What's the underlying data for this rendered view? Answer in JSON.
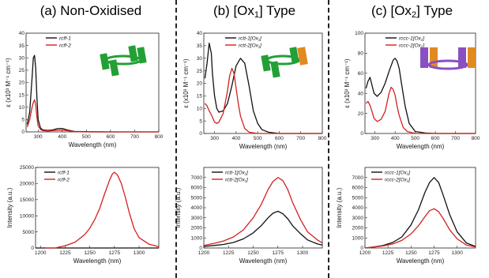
{
  "panels": [
    {
      "title_main": "(a) Non-Oxidised",
      "title_sub": ""
    },
    {
      "title_main": "(b) [Ox",
      "title_sub": "1",
      "title_tail": "] Type"
    },
    {
      "title_main": "(c) [Ox",
      "title_sub": "2",
      "title_tail": "] Type"
    }
  ],
  "colors": {
    "black": "#111111",
    "red": "#d42020",
    "green": "#22a035",
    "orange": "#e08a20",
    "purple": "#8a4fc0"
  },
  "icons": [
    "green-molecule-icon",
    "green-orange-molecule-icon",
    "purple-orange-molecule-icon"
  ],
  "chart_data": [
    {
      "type": "line",
      "ylabel": "ε (x10³ M⁻¹ cm⁻¹)",
      "xlabel": "Wavelength (nm)",
      "xlim": [
        250,
        800
      ],
      "ylim": [
        0,
        40
      ],
      "xticks": [
        300,
        400,
        500,
        600,
        700,
        800
      ],
      "yticks": [
        0,
        5,
        10,
        15,
        20,
        25,
        30,
        35,
        40
      ],
      "series": [
        {
          "name": "rcff-1",
          "color": "black",
          "x": [
            255,
            265,
            275,
            280,
            285,
            290,
            295,
            300,
            310,
            320,
            340,
            360,
            380,
            400,
            420,
            450,
            500,
            600,
            700,
            800
          ],
          "y": [
            3,
            8,
            22,
            30,
            31,
            26,
            14,
            5,
            1.5,
            0.8,
            0.6,
            0.8,
            1.3,
            1.4,
            0.8,
            0.2,
            0.05,
            0,
            0,
            0
          ]
        },
        {
          "name": "rcff-2",
          "color": "red",
          "x": [
            255,
            265,
            275,
            280,
            285,
            290,
            295,
            300,
            310,
            320,
            340,
            360,
            380,
            400,
            420,
            450,
            500,
            600,
            700,
            800
          ],
          "y": [
            2,
            5,
            10,
            12,
            13,
            11,
            6,
            2.5,
            1,
            0.5,
            0.4,
            0.5,
            0.7,
            0.7,
            0.5,
            0.1,
            0,
            0,
            0,
            0
          ]
        }
      ]
    },
    {
      "type": "line",
      "ylabel": "ε (x10³ M⁻¹ cm⁻¹)",
      "xlabel": "Wavelength (nm)",
      "xlim": [
        250,
        800
      ],
      "ylim": [
        0,
        40
      ],
      "xticks": [
        300,
        400,
        500,
        600,
        700,
        800
      ],
      "yticks": [
        0,
        5,
        10,
        15,
        20,
        25,
        30,
        35,
        40
      ],
      "series": [
        {
          "name": "rctt-1[Ox₁]",
          "color": "black",
          "x": [
            255,
            265,
            275,
            285,
            290,
            300,
            310,
            320,
            340,
            360,
            380,
            400,
            420,
            440,
            460,
            480,
            500,
            520,
            550,
            600,
            700,
            800
          ],
          "y": [
            22,
            28,
            36,
            32,
            24,
            15,
            10,
            8.5,
            9,
            12,
            19,
            27,
            30,
            28,
            19,
            9,
            4,
            1.5,
            0.5,
            0,
            0,
            0
          ]
        },
        {
          "name": "rctt-2[Ox₁]",
          "color": "red",
          "x": [
            255,
            265,
            275,
            285,
            290,
            300,
            310,
            320,
            340,
            360,
            370,
            380,
            390,
            400,
            410,
            420,
            440,
            460,
            500,
            600,
            700,
            800
          ],
          "y": [
            12,
            11,
            9,
            7.5,
            6.5,
            4.5,
            4,
            4.5,
            8,
            17,
            23,
            26,
            24,
            18,
            12,
            7,
            2,
            0.5,
            0,
            0,
            0,
            0
          ]
        }
      ]
    },
    {
      "type": "line",
      "ylabel": "ε (x10³ M⁻¹ cm⁻¹)",
      "xlabel": "Wavelength (nm)",
      "xlim": [
        250,
        800
      ],
      "ylim": [
        0,
        100
      ],
      "xticks": [
        300,
        400,
        500,
        600,
        700,
        800
      ],
      "yticks": [
        0,
        20,
        40,
        60,
        80,
        100
      ],
      "series": [
        {
          "name": "rccc-1[Ox₂]",
          "color": "black",
          "x": [
            255,
            265,
            275,
            285,
            295,
            310,
            330,
            350,
            370,
            390,
            400,
            410,
            420,
            430,
            450,
            470,
            500,
            550,
            600,
            700,
            800
          ],
          "y": [
            45,
            52,
            56,
            48,
            40,
            37,
            41,
            50,
            62,
            73,
            75,
            72,
            65,
            52,
            27,
            10,
            2,
            0.5,
            0,
            0,
            0
          ]
        },
        {
          "name": "rccc-2[Ox₂]",
          "color": "red",
          "x": [
            255,
            265,
            275,
            285,
            295,
            310,
            330,
            350,
            370,
            380,
            390,
            400,
            410,
            420,
            440,
            460,
            500,
            600,
            700,
            800
          ],
          "y": [
            30,
            32,
            28,
            22,
            15,
            12,
            14,
            22,
            40,
            46,
            44,
            38,
            27,
            18,
            6,
            2,
            0,
            0,
            0,
            0
          ]
        }
      ]
    },
    {
      "type": "line",
      "ylabel": "Intensity (a.u.)",
      "xlabel": "Wavelength (nm)",
      "xlim": [
        1195,
        1320
      ],
      "ylim": [
        0,
        25000
      ],
      "xticks": [
        1200,
        1225,
        1250,
        1275,
        1300
      ],
      "yticks": [
        0,
        5000,
        10000,
        15000,
        20000,
        25000
      ],
      "series": [
        {
          "name": "rcff-1",
          "color": "black",
          "x": [
            1195,
            1320
          ],
          "y": [
            0,
            0
          ]
        },
        {
          "name": "rcff-2",
          "color": "red",
          "x": [
            1205,
            1215,
            1225,
            1235,
            1245,
            1250,
            1255,
            1260,
            1265,
            1270,
            1273,
            1275,
            1278,
            1282,
            1286,
            1290,
            1295,
            1300,
            1310,
            1320
          ],
          "y": [
            0,
            0,
            700,
            1800,
            4200,
            6100,
            8800,
            12200,
            16800,
            21000,
            23000,
            23500,
            22700,
            20000,
            15800,
            11000,
            6000,
            3200,
            1200,
            400
          ]
        }
      ]
    },
    {
      "type": "line",
      "ylabel": "Intensity (a.u.)",
      "xlabel": "Wavelength (nm)",
      "xlim": [
        1200,
        1320
      ],
      "ylim": [
        0,
        8000
      ],
      "xticks": [
        1200,
        1225,
        1250,
        1275,
        1300
      ],
      "yticks": [
        0,
        1000,
        2000,
        3000,
        4000,
        5000,
        6000,
        7000
      ],
      "series": [
        {
          "name": "rctt-1[Ox₁]",
          "color": "black",
          "x": [
            1200,
            1210,
            1220,
            1230,
            1240,
            1250,
            1258,
            1265,
            1270,
            1275,
            1280,
            1285,
            1290,
            1298,
            1305,
            1315,
            1320
          ],
          "y": [
            150,
            250,
            350,
            550,
            900,
            1500,
            2200,
            3000,
            3450,
            3650,
            3400,
            2900,
            2200,
            1400,
            800,
            400,
            300
          ]
        },
        {
          "name": "rctt-2[Ox₁]",
          "color": "red",
          "x": [
            1200,
            1210,
            1220,
            1230,
            1240,
            1250,
            1258,
            1265,
            1270,
            1275,
            1280,
            1285,
            1290,
            1298,
            1305,
            1315,
            1320
          ],
          "y": [
            250,
            450,
            700,
            1100,
            1800,
            3000,
            4300,
            5800,
            6600,
            7000,
            6700,
            5800,
            4500,
            2800,
            1600,
            800,
            500
          ]
        }
      ]
    },
    {
      "type": "line",
      "ylabel": "Intensity (a.u.)",
      "xlabel": "Wavelength (nm)",
      "xlim": [
        1200,
        1320
      ],
      "ylim": [
        0,
        8000
      ],
      "xticks": [
        1200,
        1225,
        1250,
        1275,
        1300
      ],
      "yticks": [
        0,
        1000,
        2000,
        3000,
        4000,
        5000,
        6000,
        7000
      ],
      "series": [
        {
          "name": "rccc-1[Ox₂]",
          "color": "black",
          "x": [
            1200,
            1210,
            1220,
            1230,
            1240,
            1250,
            1258,
            1265,
            1270,
            1275,
            1280,
            1285,
            1292,
            1300,
            1310,
            1320
          ],
          "y": [
            0,
            100,
            250,
            550,
            1100,
            2300,
            3800,
            5500,
            6500,
            7000,
            6500,
            5200,
            3300,
            1600,
            500,
            150
          ]
        },
        {
          "name": "rccc-2[Ox₂]",
          "color": "red",
          "x": [
            1200,
            1210,
            1220,
            1230,
            1240,
            1250,
            1258,
            1265,
            1270,
            1275,
            1280,
            1285,
            1292,
            1300,
            1310,
            1320
          ],
          "y": [
            0,
            100,
            200,
            400,
            750,
            1400,
            2200,
            3100,
            3700,
            3900,
            3600,
            2900,
            1800,
            900,
            300,
            100
          ]
        }
      ]
    }
  ]
}
